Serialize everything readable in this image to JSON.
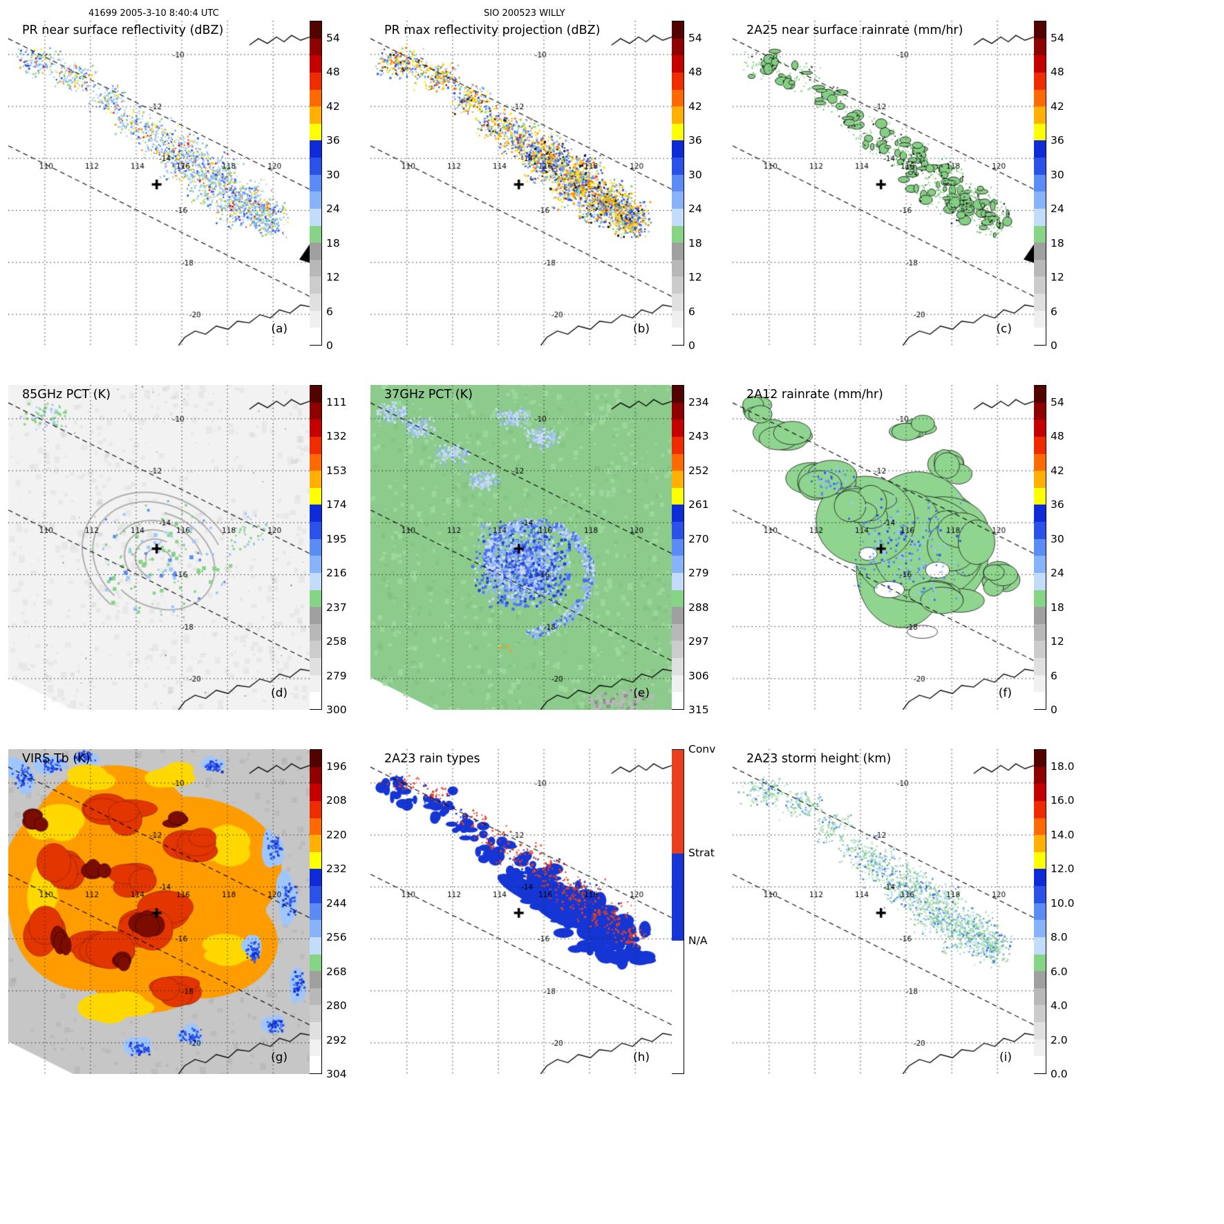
{
  "header": {
    "left": "41699 2005-3-10 8:40:4 UTC",
    "center": "SIO 200523 WILLY"
  },
  "geo": {
    "lon_labels": [
      "110",
      "112",
      "114",
      "116",
      "118",
      "120"
    ],
    "lat_labels": [
      "-10",
      "-12",
      "-14",
      "-16",
      "-18",
      "-20"
    ]
  },
  "rainbow_segments": [
    "#520300",
    "#8f0000",
    "#c40000",
    "#ee2c00",
    "#ff6a00",
    "#ffb000",
    "#ffff00",
    "#0d2bd6",
    "#2a52e8",
    "#5b8cf5",
    "#86b3fa",
    "#c3dcfc",
    "#86d486",
    "#a0a0a0",
    "#b8b8b8",
    "#cccccc",
    "#e0e0e0",
    "#f0f0f0",
    "#ffffff"
  ],
  "raintype_segments": [
    {
      "label": "Conv",
      "color": "#e8401c",
      "pct": 32
    },
    {
      "label": "Strat",
      "color": "#1536d4",
      "pct": 27
    },
    {
      "label": "N/A",
      "color": "#ffffff",
      "pct": 41
    }
  ],
  "panels": [
    {
      "id": "a",
      "title": "PR near surface reflectivity (dBZ)",
      "letter": "(a)",
      "art": "pr_nsr",
      "triangle": true,
      "colorbar": {
        "kind": "rainbow",
        "ticks": [
          "54",
          "48",
          "42",
          "36",
          "30",
          "24",
          "18",
          "12",
          "6",
          "0"
        ]
      }
    },
    {
      "id": "b",
      "title": "PR max reflectivity projection (dBZ)",
      "letter": "(b)",
      "art": "pr_max",
      "triangle": false,
      "colorbar": {
        "kind": "rainbow",
        "ticks": [
          "54",
          "48",
          "42",
          "36",
          "30",
          "24",
          "18",
          "12",
          "6",
          "0"
        ]
      }
    },
    {
      "id": "c",
      "title": "2A25 near surface rainrate (mm/hr)",
      "letter": "(c)",
      "art": "rr_2a25",
      "triangle": true,
      "colorbar": {
        "kind": "rainbow",
        "ticks": [
          "54",
          "48",
          "42",
          "36",
          "30",
          "24",
          "18",
          "12",
          "6",
          "0"
        ]
      }
    },
    {
      "id": "d",
      "title": "85GHz PCT (K)",
      "letter": "(d)",
      "art": "pct85",
      "triangle": false,
      "colorbar": {
        "kind": "rainbow",
        "ticks": [
          "111",
          "132",
          "153",
          "174",
          "195",
          "216",
          "237",
          "258",
          "279",
          "300"
        ]
      }
    },
    {
      "id": "e",
      "title": "37GHz PCT (K)",
      "letter": "(e)",
      "art": "pct37",
      "triangle": false,
      "colorbar": {
        "kind": "rainbow",
        "ticks": [
          "234",
          "243",
          "252",
          "261",
          "270",
          "279",
          "288",
          "297",
          "306",
          "315"
        ]
      }
    },
    {
      "id": "f",
      "title": "2A12 rainrate (mm/hr)",
      "letter": "(f)",
      "art": "rr_2a12",
      "triangle": false,
      "colorbar": {
        "kind": "rainbow",
        "ticks": [
          "54",
          "48",
          "42",
          "36",
          "30",
          "24",
          "18",
          "12",
          "6",
          "0"
        ]
      }
    },
    {
      "id": "g",
      "title": "VIRS Tb (K)",
      "letter": "(g)",
      "art": "virs",
      "triangle": false,
      "colorbar": {
        "kind": "rainbow",
        "ticks": [
          "196",
          "208",
          "220",
          "232",
          "244",
          "256",
          "268",
          "280",
          "292",
          "304"
        ]
      }
    },
    {
      "id": "h",
      "title": "2A23 rain types",
      "letter": "(h)",
      "art": "raintypes",
      "triangle": false,
      "colorbar": {
        "kind": "raintypes",
        "ticks": [
          "Conv",
          "Strat",
          "N/A"
        ]
      }
    },
    {
      "id": "i",
      "title": "2A23 storm height (km)",
      "letter": "(i)",
      "art": "storm_height",
      "triangle": false,
      "colorbar": {
        "kind": "rainbow",
        "ticks": [
          "18.0",
          "16.0",
          "14.0",
          "12.0",
          "10.0",
          "8.0",
          "6.0",
          "4.0",
          "2.0",
          "0.0"
        ]
      }
    }
  ],
  "chart_data": [
    {
      "type": "heatmap",
      "panel": "a",
      "title": "PR near surface reflectivity (dBZ)",
      "units": "dBZ",
      "x_ticks": [
        110,
        112,
        114,
        116,
        118,
        120
      ],
      "y_ticks": [
        -10,
        -12,
        -14,
        -16,
        -18,
        -20
      ],
      "colorbar_ticks": [
        0,
        6,
        12,
        18,
        24,
        30,
        36,
        42,
        48,
        54
      ],
      "storm_center_marker": true
    },
    {
      "type": "heatmap",
      "panel": "b",
      "title": "PR max reflectivity projection (dBZ)",
      "units": "dBZ",
      "x_ticks": [
        110,
        112,
        114,
        116,
        118,
        120
      ],
      "y_ticks": [
        -10,
        -12,
        -14,
        -16,
        -18,
        -20
      ],
      "colorbar_ticks": [
        0,
        6,
        12,
        18,
        24,
        30,
        36,
        42,
        48,
        54
      ],
      "storm_center_marker": true
    },
    {
      "type": "heatmap",
      "panel": "c",
      "title": "2A25 near surface rainrate (mm/hr)",
      "units": "mm/hr",
      "x_ticks": [
        110,
        112,
        114,
        116,
        118,
        120
      ],
      "y_ticks": [
        -10,
        -12,
        -14,
        -16,
        -18,
        -20
      ],
      "colorbar_ticks": [
        0,
        6,
        12,
        18,
        24,
        30,
        36,
        42,
        48,
        54
      ],
      "storm_center_marker": true
    },
    {
      "type": "heatmap",
      "panel": "d",
      "title": "85GHz PCT (K)",
      "units": "K",
      "x_ticks": [
        110,
        112,
        114,
        116,
        118,
        120
      ],
      "y_ticks": [
        -10,
        -12,
        -14,
        -16,
        -18,
        -20
      ],
      "colorbar_ticks": [
        111,
        132,
        153,
        174,
        195,
        216,
        237,
        258,
        279,
        300
      ],
      "storm_center_marker": true
    },
    {
      "type": "heatmap",
      "panel": "e",
      "title": "37GHz PCT (K)",
      "units": "K",
      "x_ticks": [
        110,
        112,
        114,
        116,
        118,
        120
      ],
      "y_ticks": [
        -10,
        -12,
        -14,
        -16,
        -18,
        -20
      ],
      "colorbar_ticks": [
        234,
        243,
        252,
        261,
        270,
        279,
        288,
        297,
        306,
        315
      ],
      "storm_center_marker": true
    },
    {
      "type": "heatmap",
      "panel": "f",
      "title": "2A12 rainrate (mm/hr)",
      "units": "mm/hr",
      "x_ticks": [
        110,
        112,
        114,
        116,
        118,
        120
      ],
      "y_ticks": [
        -10,
        -12,
        -14,
        -16,
        -18,
        -20
      ],
      "colorbar_ticks": [
        0,
        6,
        12,
        18,
        24,
        30,
        36,
        42,
        48,
        54
      ],
      "storm_center_marker": true
    },
    {
      "type": "heatmap",
      "panel": "g",
      "title": "VIRS Tb (K)",
      "units": "K",
      "x_ticks": [
        110,
        112,
        114,
        116,
        118,
        120
      ],
      "y_ticks": [
        -10,
        -12,
        -14,
        -16,
        -18,
        -20
      ],
      "colorbar_ticks": [
        196,
        208,
        220,
        232,
        244,
        256,
        268,
        280,
        292,
        304
      ],
      "storm_center_marker": true
    },
    {
      "type": "heatmap",
      "panel": "h",
      "title": "2A23 rain types",
      "categories": [
        "Conv",
        "Strat",
        "N/A"
      ],
      "x_ticks": [
        110,
        112,
        114,
        116,
        118,
        120
      ],
      "y_ticks": [
        -10,
        -12,
        -14,
        -16,
        -18,
        -20
      ],
      "storm_center_marker": true
    },
    {
      "type": "heatmap",
      "panel": "i",
      "title": "2A23 storm height (km)",
      "units": "km",
      "x_ticks": [
        110,
        112,
        114,
        116,
        118,
        120
      ],
      "y_ticks": [
        -10,
        -12,
        -14,
        -16,
        -18,
        -20
      ],
      "colorbar_ticks": [
        0,
        2,
        4,
        6,
        8,
        10,
        12,
        14,
        16,
        18
      ],
      "storm_center_marker": true
    }
  ]
}
